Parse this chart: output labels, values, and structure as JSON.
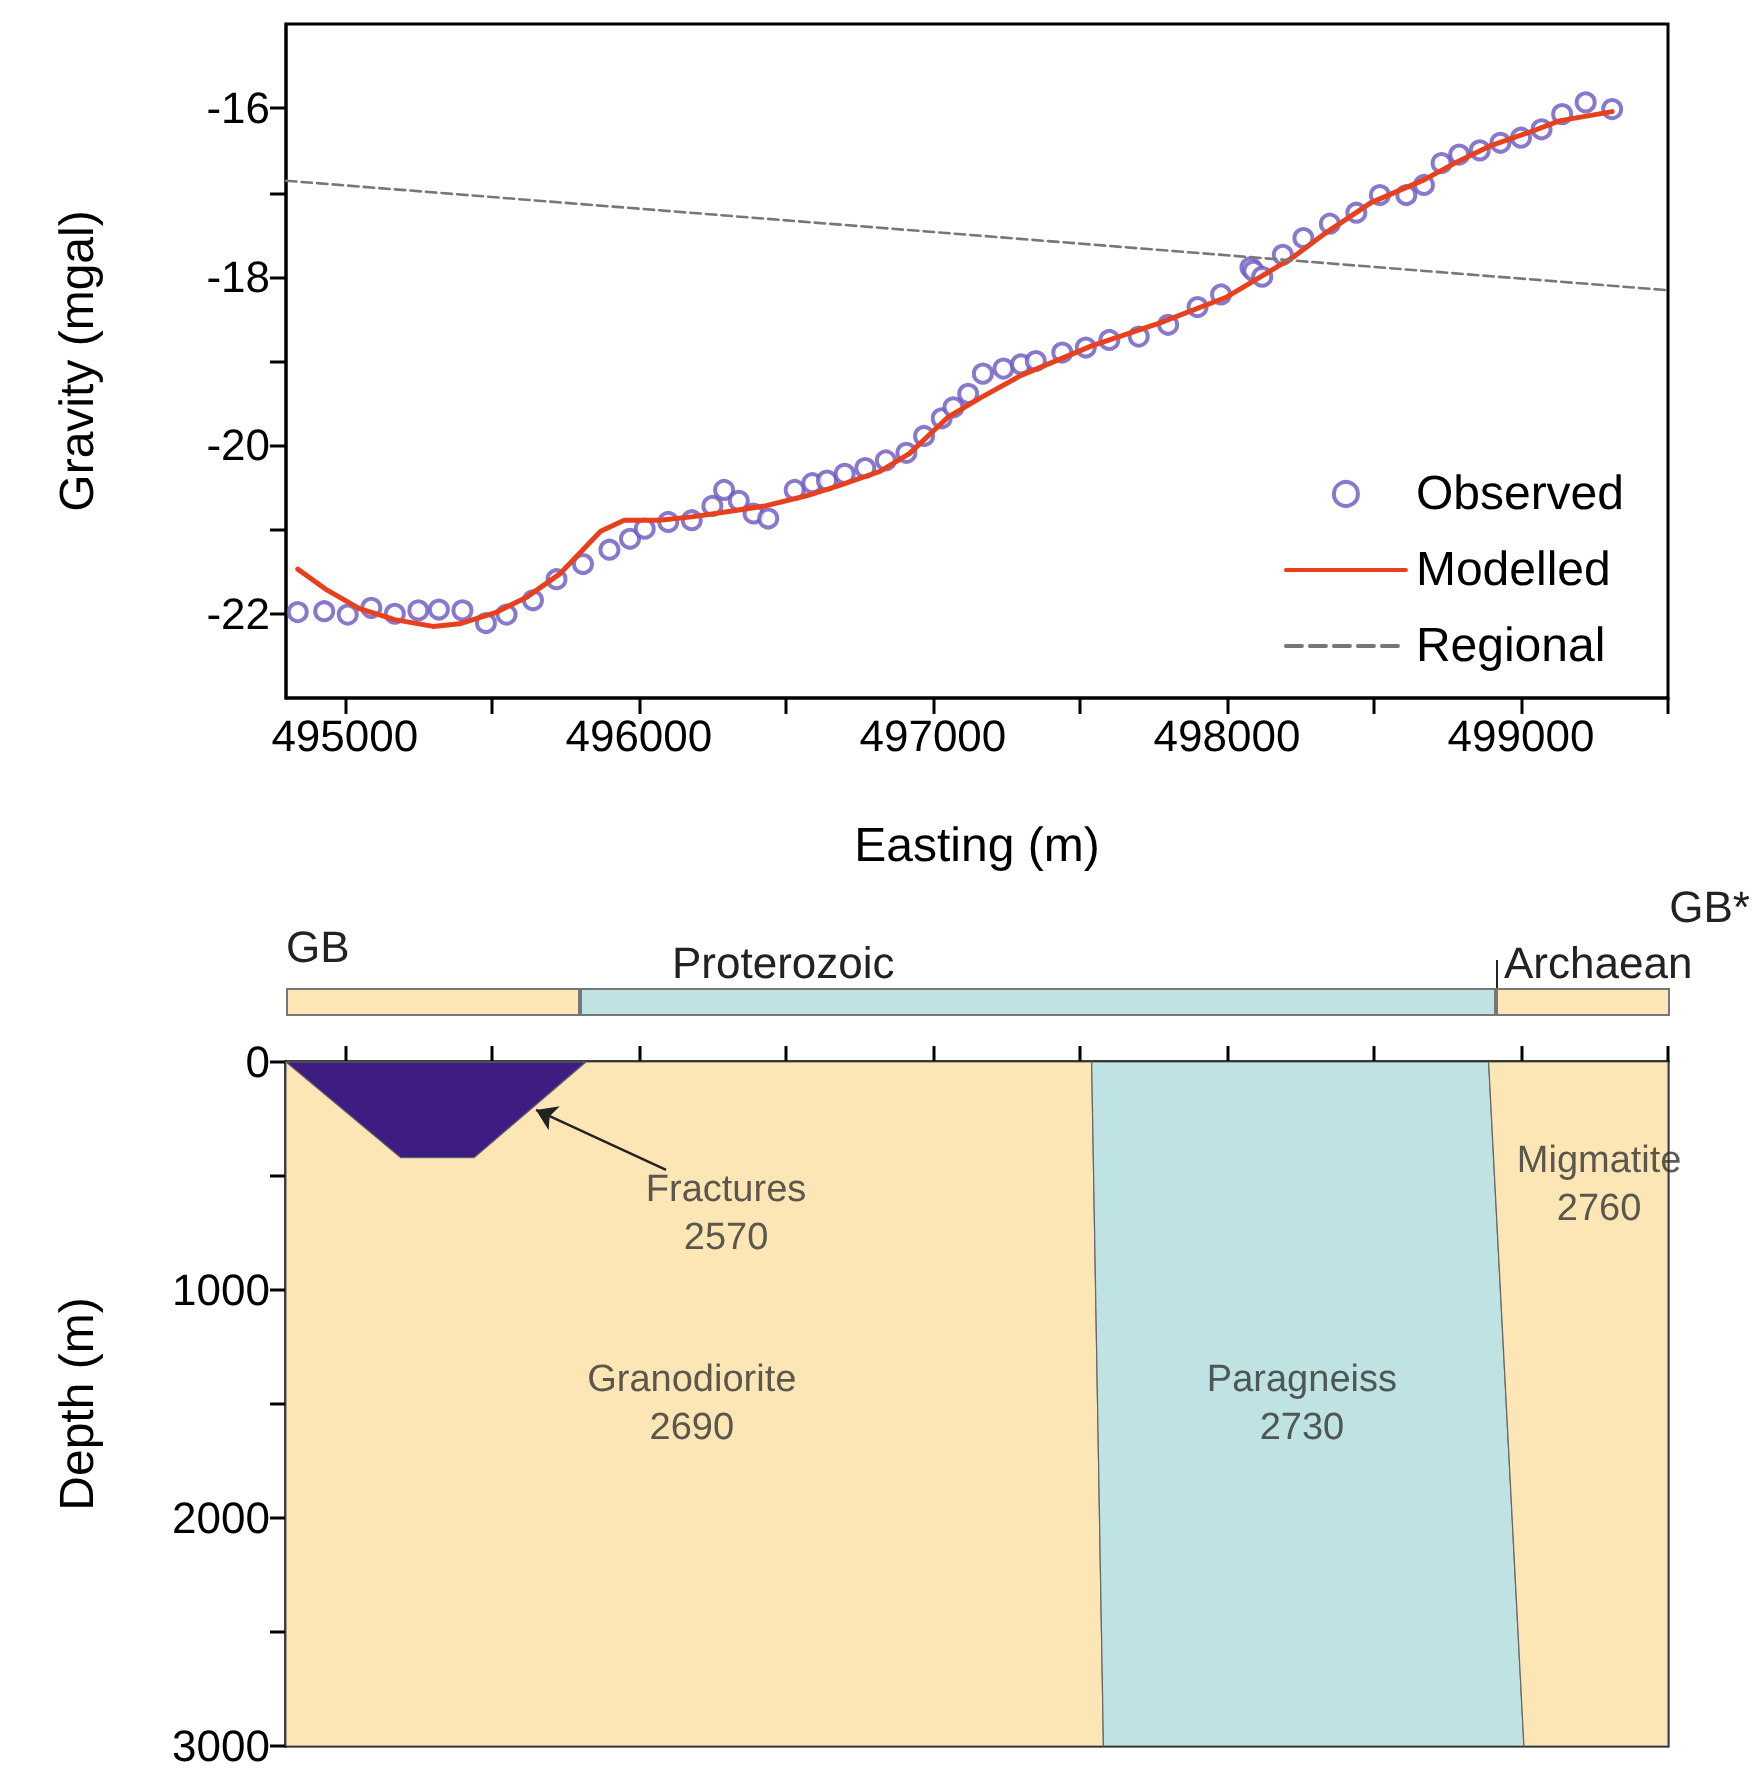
{
  "chart_data": [
    {
      "type": "line",
      "xlabel": "Easting (m)",
      "ylabel": "Gravity (mgal)",
      "xlim": [
        494800,
        499500
      ],
      "xticks": [
        495000,
        {
          "value": 495500,
          "label": null
        },
        496000,
        {
          "value": 496500,
          "label": null
        },
        497000,
        {
          "value": 497500,
          "label": null
        },
        498000,
        {
          "value": 498500,
          "label": null
        },
        499000,
        {
          "value": 499500,
          "label": null
        }
      ],
      "ylim": [
        -23,
        -15
      ],
      "yticks": [
        -22,
        {
          "value": -21,
          "label": null
        },
        -20,
        {
          "value": -19,
          "label": null
        },
        -18,
        {
          "value": -17,
          "label": null
        },
        -16
      ],
      "legend": "bottom right",
      "series": [
        {
          "name": "Observed",
          "type": "scatter",
          "marker": "circle",
          "color": "#6a58c0",
          "x": [
            494840,
            494930,
            495010,
            495090,
            495170,
            495250,
            495320,
            495400,
            495480,
            495550,
            495640,
            495720,
            495810,
            495900,
            495970,
            496020,
            496100,
            496180,
            496250,
            496290,
            496340,
            496390,
            496440,
            496530,
            496590,
            496640,
            496700,
            496770,
            496840,
            496910,
            496970,
            497030,
            497070,
            497120,
            497170,
            497240,
            497300,
            497350,
            497440,
            497520,
            497600,
            497700,
            497800,
            497900,
            497980,
            498080,
            498090,
            498120,
            498190,
            498260,
            498350,
            498440,
            498520,
            498610,
            498670,
            498730,
            498790,
            498860,
            498930,
            499000,
            499070,
            499140,
            499220,
            499310
          ],
          "values": [
            -21.98,
            -21.97,
            -22.01,
            -21.93,
            -22.0,
            -21.96,
            -21.95,
            -21.96,
            -22.11,
            -22.01,
            -21.84,
            -21.59,
            -21.41,
            -21.24,
            -21.11,
            -20.99,
            -20.91,
            -20.89,
            -20.72,
            -20.53,
            -20.66,
            -20.81,
            -20.87,
            -20.53,
            -20.45,
            -20.42,
            -20.34,
            -20.27,
            -20.18,
            -20.09,
            -19.89,
            -19.68,
            -19.55,
            -19.39,
            -19.15,
            -19.09,
            -19.04,
            -19.0,
            -18.9,
            -18.84,
            -18.75,
            -18.71,
            -18.57,
            -18.36,
            -18.21,
            -17.89,
            -17.93,
            -18.0,
            -17.74,
            -17.54,
            -17.37,
            -17.24,
            -17.03,
            -17.03,
            -16.91,
            -16.65,
            -16.55,
            -16.5,
            -16.41,
            -16.35,
            -16.25,
            -16.07,
            -15.93,
            -16.01
          ]
        },
        {
          "name": "Modelled",
          "type": "line",
          "marker": "none",
          "line_style": "solid",
          "color": "#e8401c",
          "x": [
            494840,
            494940,
            495050,
            495170,
            495300,
            495390,
            495510,
            495620,
            495730,
            495870,
            495950,
            496070,
            496180,
            496300,
            496430,
            496570,
            496680,
            496820,
            496920,
            497050,
            497160,
            497300,
            497540,
            497770,
            498000,
            498110,
            498220,
            498340,
            498490,
            498670,
            498770,
            498900,
            499040,
            499130,
            499310
          ],
          "values": [
            -21.47,
            -21.72,
            -21.94,
            -22.07,
            -22.15,
            -22.12,
            -21.99,
            -21.8,
            -21.53,
            -21.02,
            -20.89,
            -20.89,
            -20.85,
            -20.79,
            -20.72,
            -20.6,
            -20.48,
            -20.31,
            -20.1,
            -19.67,
            -19.44,
            -19.17,
            -18.82,
            -18.55,
            -18.24,
            -18.01,
            -17.78,
            -17.47,
            -17.12,
            -16.85,
            -16.66,
            -16.44,
            -16.27,
            -16.15,
            -16.04
          ]
        },
        {
          "name": "Regional",
          "type": "line",
          "marker": "none",
          "line_style": "dashed",
          "color": "#777777",
          "x": [
            494800,
            499500
          ],
          "values": [
            -16.86,
            -18.16
          ]
        }
      ]
    },
    {
      "type": "other",
      "annotations": [
        "GB",
        "Proterozoic",
        "GB*",
        "Archaean"
      ]
    },
    {
      "type": "area",
      "ylabel": "Depth (m)",
      "tick_labels": "y",
      "xlim": [
        494800,
        499500
      ],
      "xticks": [
        {
          "value": 495000,
          "label": null
        },
        {
          "value": 495500,
          "label": null
        },
        {
          "value": 496000,
          "label": null
        },
        {
          "value": 496500,
          "label": null
        },
        {
          "value": 497000,
          "label": null
        },
        {
          "value": 497500,
          "label": null
        },
        {
          "value": 498000,
          "label": null
        },
        {
          "value": 498500,
          "label": null
        },
        {
          "value": 499000,
          "label": null
        },
        {
          "value": 499500,
          "label": null
        }
      ],
      "ylim": [
        3000,
        0
      ],
      "yticks": [
        0,
        {
          "value": 500,
          "label": null
        },
        1000,
        {
          "value": 1500,
          "label": null
        },
        2000,
        {
          "value": 2500,
          "label": null
        },
        3000
      ],
      "series": [
        {
          "color": "#fde6b6",
          "x": [
            494800,
            497540,
            497580,
            494800
          ],
          "values": [
            0,
            0,
            3000,
            3000
          ]
        },
        {
          "color": "#bfe2e2",
          "x": [
            497540,
            498890,
            499010,
            497580
          ],
          "values": [
            0,
            0,
            3000,
            3000
          ]
        },
        {
          "color": "#fde6b6",
          "x": [
            498890,
            499500,
            499500,
            499010
          ],
          "values": [
            0,
            0,
            3000,
            3000
          ]
        },
        {
          "color": "#3d1d82",
          "x": [
            494800,
            495190,
            495440,
            495820
          ],
          "values": [
            0,
            420,
            420,
            0
          ]
        }
      ],
      "annotations": [
        "Granodiorite\n2690",
        "Paragneiss\n2730",
        "Migmatite\n2760",
        {
          "text": "Fractures\n2570",
          "x": 495630,
          "y": 210
        }
      ]
    }
  ]
}
